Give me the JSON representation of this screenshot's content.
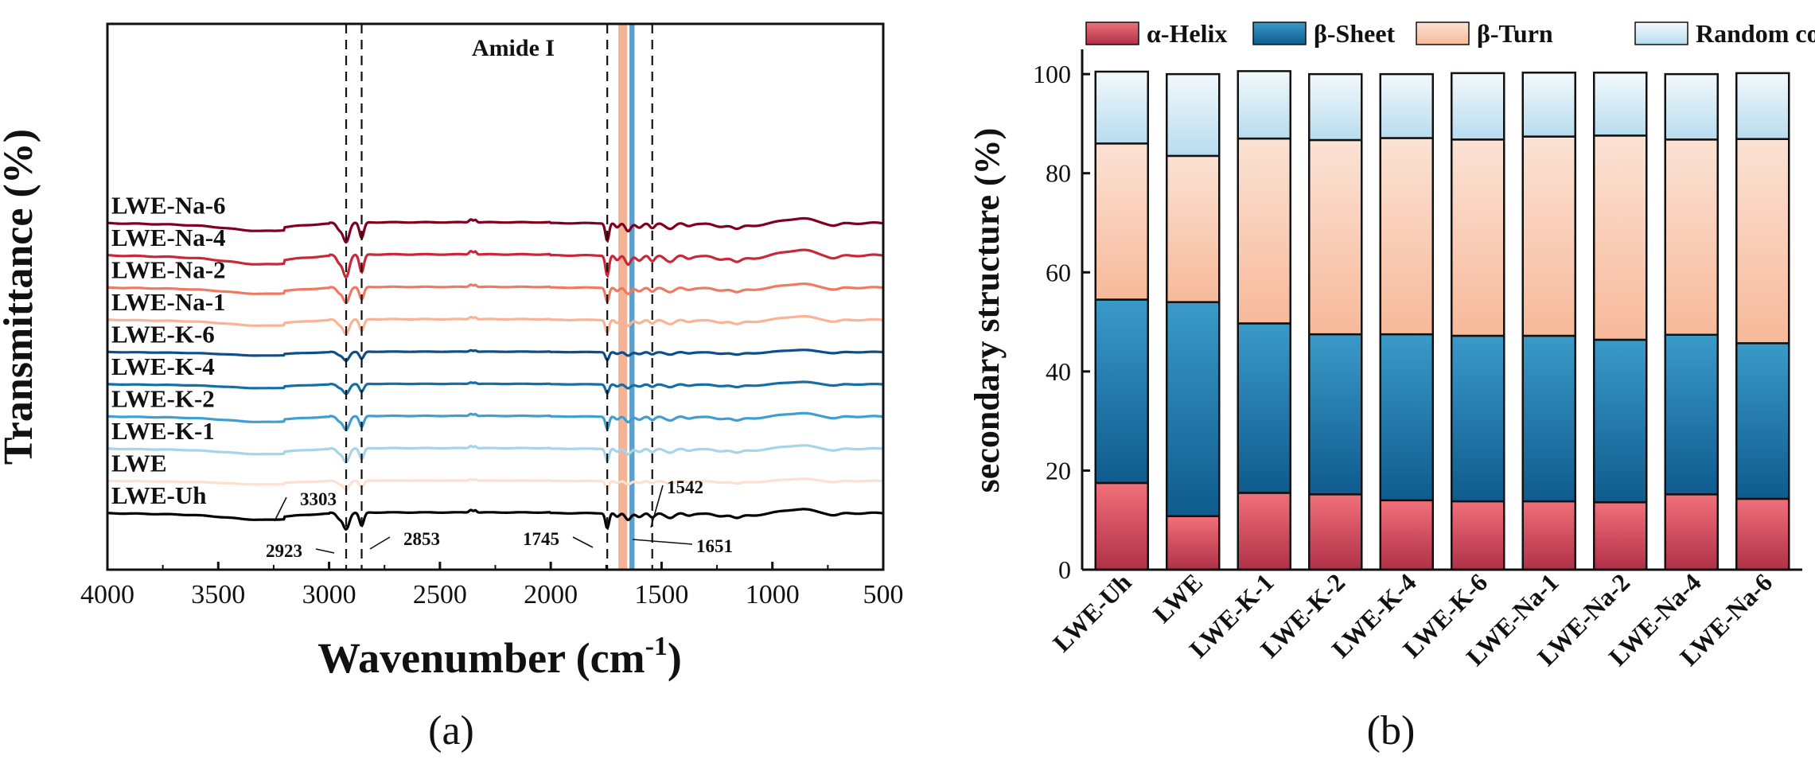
{
  "chart_data": [
    {
      "type": "line",
      "panel_label": "(a)",
      "xlabel": "Wavenumber (cm",
      "xlabel_sup": "-1",
      "xlabel_close": ")",
      "ylabel": "Transmittance (%)",
      "xlim": [
        4000,
        500
      ],
      "x_ticks": [
        4000,
        3500,
        3000,
        2500,
        2000,
        1500,
        1000,
        500
      ],
      "region_label": "Amide I",
      "dashed_lines": [
        2923,
        2853,
        1745,
        1542
      ],
      "bands": [
        {
          "from": 1695,
          "to": 1655,
          "color": "#f4a582",
          "role": "beta-turn"
        },
        {
          "from": 1645,
          "to": 1622,
          "color": "#3a8fc9",
          "role": "beta-sheet"
        }
      ],
      "annotations": [
        {
          "text": "3303",
          "x": 3303,
          "series": "LWE-Uh"
        },
        {
          "text": "2923",
          "x": 2923,
          "series": "LWE-Uh"
        },
        {
          "text": "2853",
          "x": 2853,
          "series": "LWE-Uh"
        },
        {
          "text": "1745",
          "x": 1745,
          "series": "LWE-Uh"
        },
        {
          "text": "1651",
          "x": 1651,
          "series": "LWE-Uh"
        },
        {
          "text": "1542",
          "x": 1542,
          "series": "LWE-Uh"
        }
      ],
      "series": [
        {
          "name": "LWE-Na-6",
          "color": "#7f0020",
          "offset": 9,
          "strength": 1.0
        },
        {
          "name": "LWE-Na-4",
          "color": "#c8283a",
          "offset": 8,
          "strength": 1.15
        },
        {
          "name": "LWE-Na-2",
          "color": "#ee7a63",
          "offset": 7,
          "strength": 0.8
        },
        {
          "name": "LWE-Na-1",
          "color": "#fbb396",
          "offset": 6,
          "strength": 0.75
        },
        {
          "name": "LWE-K-6",
          "color": "#0c4f8c",
          "offset": 5,
          "strength": 0.45
        },
        {
          "name": "LWE-K-4",
          "color": "#166ea7",
          "offset": 4,
          "strength": 0.5
        },
        {
          "name": "LWE-K-2",
          "color": "#3f9fd0",
          "offset": 3,
          "strength": 0.7
        },
        {
          "name": "LWE-K-1",
          "color": "#a6d4e9",
          "offset": 2,
          "strength": 0.7
        },
        {
          "name": "LWE",
          "color": "#fde0d2",
          "offset": 1,
          "strength": 0.45
        },
        {
          "name": "LWE-Uh",
          "color": "#000000",
          "offset": 0,
          "strength": 0.85
        }
      ]
    },
    {
      "type": "bar",
      "stacked": true,
      "panel_label": "(b)",
      "ylabel": "secondary structure (%)",
      "ylim": [
        0,
        105
      ],
      "y_ticks": [
        0,
        20,
        40,
        60,
        80,
        100
      ],
      "legend_position": "top",
      "categories": [
        "LWE-Uh",
        "LWE",
        "LWE-K-1",
        "LWE-K-2",
        "LWE-K-4",
        "LWE-K-6",
        "LWE-Na-1",
        "LWE-Na-2",
        "LWE-Na-4",
        "LWE-Na-6"
      ],
      "series": [
        {
          "name": "α-Helix",
          "color_top": "#f0707a",
          "color_bottom": "#b03048",
          "values": [
            17.5,
            10.8,
            15.5,
            15.2,
            14.0,
            13.8,
            13.8,
            13.6,
            15.2,
            14.3
          ]
        },
        {
          "name": "β-Sheet",
          "color_top": "#3a9ac8",
          "color_bottom": "#0f5b8e",
          "values": [
            37.0,
            43.2,
            34.2,
            32.3,
            33.5,
            33.4,
            33.4,
            32.8,
            32.2,
            31.4
          ]
        },
        {
          "name": "β-Turn",
          "color_top": "#fbe2d4",
          "color_bottom": "#f7b99a",
          "values": [
            31.5,
            29.5,
            37.3,
            39.2,
            39.6,
            39.6,
            40.2,
            41.2,
            39.4,
            41.2
          ]
        },
        {
          "name": "Random coil",
          "color_top": "#f3f9fc",
          "color_bottom": "#b7dcee",
          "values": [
            14.5,
            16.5,
            13.6,
            13.3,
            12.9,
            13.4,
            12.9,
            12.7,
            13.2,
            13.3
          ]
        }
      ]
    }
  ]
}
